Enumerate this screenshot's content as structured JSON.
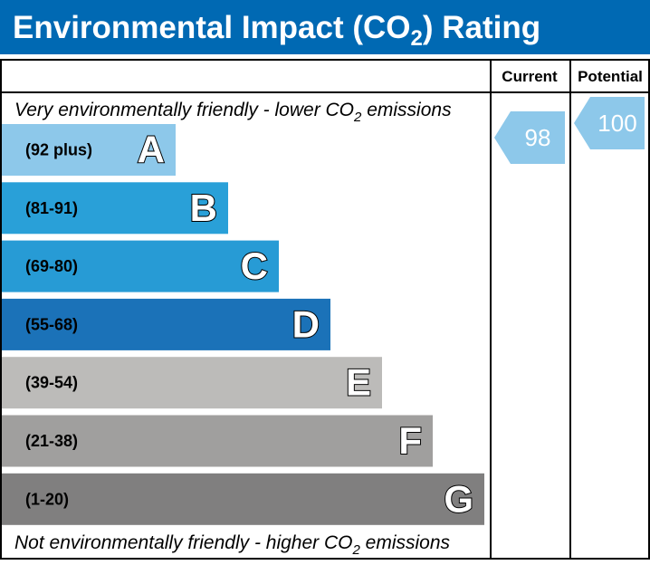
{
  "title": {
    "prefix": "Environmental Impact (CO",
    "subscript": "2",
    "suffix": ") Rating"
  },
  "columns": {
    "current": "Current",
    "potential": "Potential"
  },
  "top_note": {
    "prefix": "Very environmentally friendly - lower CO",
    "subscript": "2",
    "suffix": " emissions"
  },
  "bottom_note": {
    "prefix": "Not environmentally friendly - higher CO",
    "subscript": "2",
    "suffix": " emissions"
  },
  "chart_data": {
    "type": "bar",
    "title": "Environmental Impact (CO2) Rating",
    "bands": [
      {
        "letter": "A",
        "range": "(92 plus)",
        "color": "#8dc8ea"
      },
      {
        "letter": "B",
        "range": "(81-91)",
        "color": "#29a0d8"
      },
      {
        "letter": "C",
        "range": "(69-80)",
        "color": "#279bd5"
      },
      {
        "letter": "D",
        "range": "(55-68)",
        "color": "#1b72b8"
      },
      {
        "letter": "E",
        "range": "(39-54)",
        "color": "#bcbbb9"
      },
      {
        "letter": "F",
        "range": "(21-38)",
        "color": "#a09f9e"
      },
      {
        "letter": "G",
        "range": "(1-20)",
        "color": "#807f7f"
      }
    ],
    "current": {
      "value": "98",
      "band": "A",
      "color": "#8dc8ea"
    },
    "potential": {
      "value": "100",
      "band": "A",
      "color": "#8dc8ea"
    }
  },
  "colors": {
    "header": "#0069b3",
    "border": "#000000",
    "marker_text": "#ffffff"
  }
}
